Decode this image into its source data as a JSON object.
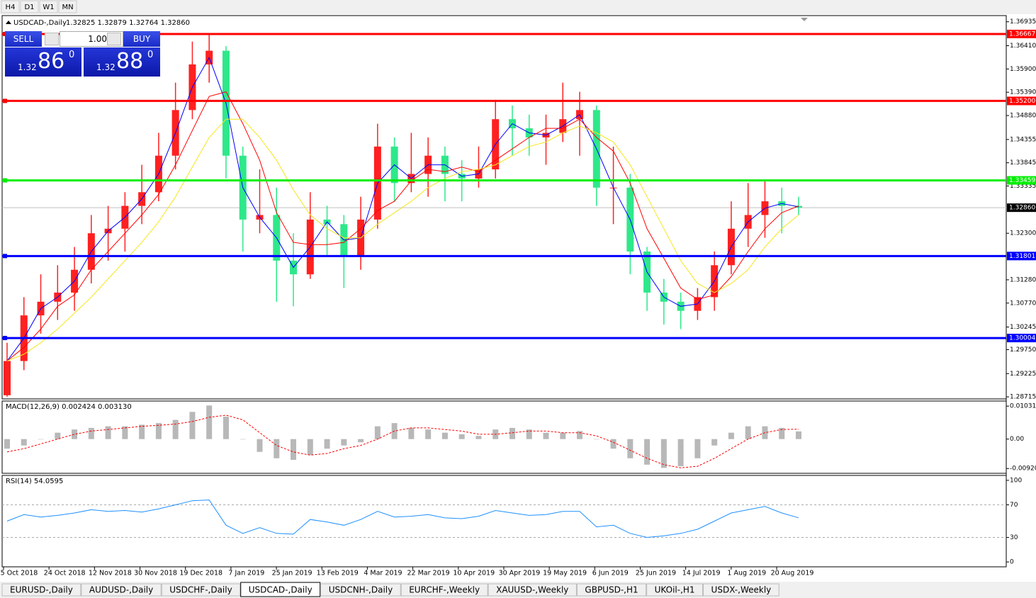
{
  "timeframes": [
    "H4",
    "D1",
    "W1",
    "MN"
  ],
  "trade_panel": {
    "sell": "SELL",
    "buy": "BUY",
    "lot": "1.00",
    "bid": {
      "big_figure": "1.32",
      "pips": "86",
      "point": "0"
    },
    "ask": {
      "big_figure": "1.32",
      "pips": "88",
      "point": "0"
    }
  },
  "symbol_tabs": [
    "EURUSD-,Daily",
    "AUDUSD-,Daily",
    "USDCHF-,Daily",
    "USDCAD-,Daily",
    "USDCNH-,Daily",
    "EURCHF-,Weekly",
    "XAUUSD-,Weekly",
    "GBPUSD-,H1",
    "UKOil-,H1",
    "USDX-,Weekly"
  ],
  "chart_data": [
    {
      "type": "candlestick",
      "title": "USDCAD-,Daily",
      "subtitle": "1.32825 1.32879 1.32764 1.32860",
      "x_labels": [
        "5 Oct 2018",
        "24 Oct 2018",
        "12 Nov 2018",
        "30 Nov 2018",
        "19 Dec 2018",
        "7 Jan 2019",
        "25 Jan 2019",
        "13 Feb 2019",
        "4 Mar 2019",
        "22 Mar 2019",
        "10 Apr 2019",
        "30 Apr 2019",
        "19 May 2019",
        "6 Jun 2019",
        "25 Jun 2019",
        "14 Jul 2019",
        "1 Aug 2019",
        "20 Aug 2019"
      ],
      "open": [
        1.2875,
        1.295,
        1.305,
        1.308,
        1.31,
        1.315,
        1.323,
        1.324,
        1.329,
        1.332,
        1.34,
        1.35,
        1.36,
        1.363,
        1.34,
        1.326,
        1.327,
        1.317,
        1.314,
        1.326,
        1.325,
        1.318,
        1.326,
        1.342,
        1.334,
        1.336,
        1.34,
        1.336,
        1.335,
        1.337,
        1.348,
        1.346,
        1.344,
        1.345,
        1.348,
        1.35,
        1.333,
        1.333,
        1.319,
        1.31,
        1.308,
        1.306,
        1.309,
        1.316,
        1.324,
        1.327,
        1.33,
        1.329
      ],
      "high": [
        1.299,
        1.309,
        1.314,
        1.316,
        1.32,
        1.327,
        1.329,
        1.332,
        1.338,
        1.345,
        1.356,
        1.365,
        1.3665,
        1.364,
        1.342,
        1.337,
        1.333,
        1.323,
        1.332,
        1.329,
        1.327,
        1.331,
        1.347,
        1.344,
        1.345,
        1.344,
        1.342,
        1.339,
        1.342,
        1.352,
        1.351,
        1.349,
        1.349,
        1.356,
        1.354,
        1.351,
        1.342,
        1.336,
        1.32,
        1.313,
        1.31,
        1.311,
        1.319,
        1.33,
        1.334,
        1.3345,
        1.333,
        1.331
      ],
      "low": [
        1.2872,
        1.293,
        1.301,
        1.304,
        1.306,
        1.312,
        1.317,
        1.319,
        1.325,
        1.33,
        1.337,
        1.348,
        1.356,
        1.335,
        1.319,
        1.323,
        1.308,
        1.307,
        1.313,
        1.318,
        1.311,
        1.315,
        1.324,
        1.33,
        1.332,
        1.331,
        1.33,
        1.33,
        1.333,
        1.335,
        1.34,
        1.34,
        1.338,
        1.343,
        1.34,
        1.329,
        1.325,
        1.314,
        1.306,
        1.303,
        1.302,
        1.304,
        1.306,
        1.314,
        1.32,
        1.322,
        1.323,
        1.327
      ],
      "close": [
        1.295,
        1.305,
        1.308,
        1.31,
        1.315,
        1.323,
        1.324,
        1.329,
        1.332,
        1.34,
        1.35,
        1.36,
        1.363,
        1.34,
        1.326,
        1.327,
        1.317,
        1.314,
        1.326,
        1.325,
        1.318,
        1.326,
        1.342,
        1.334,
        1.336,
        1.34,
        1.336,
        1.335,
        1.337,
        1.348,
        1.346,
        1.344,
        1.345,
        1.348,
        1.35,
        1.333,
        1.333,
        1.319,
        1.31,
        1.308,
        1.306,
        1.309,
        1.316,
        1.324,
        1.327,
        1.33,
        1.329,
        1.3286
      ],
      "up_color": "#ff2020",
      "down_color": "#2ee88a",
      "series": [
        {
          "color": "#0000ff",
          "values": [
            1.295,
            1.3,
            1.3065,
            1.309,
            1.3125,
            1.319,
            1.3235,
            1.3265,
            1.3305,
            1.336,
            1.345,
            1.355,
            1.3615,
            1.3515,
            1.333,
            1.3265,
            1.322,
            1.3155,
            1.32,
            1.3255,
            1.3215,
            1.322,
            1.334,
            1.338,
            1.335,
            1.338,
            1.338,
            1.3355,
            1.336,
            1.3425,
            1.347,
            1.345,
            1.3445,
            1.3465,
            1.349,
            1.3415,
            1.333,
            1.326,
            1.3145,
            1.309,
            1.307,
            1.3075,
            1.3125,
            1.32,
            1.3255,
            1.3285,
            1.3295,
            1.3288
          ]
        },
        {
          "color": "#ff0000",
          "values": [
            1.295,
            1.298,
            1.302,
            1.307,
            1.3095,
            1.315,
            1.319,
            1.323,
            1.327,
            1.3315,
            1.338,
            1.3455,
            1.353,
            1.354,
            1.347,
            1.339,
            1.3275,
            1.321,
            1.3205,
            1.3205,
            1.321,
            1.324,
            1.328,
            1.33,
            1.3345,
            1.337,
            1.3365,
            1.3375,
            1.3365,
            1.339,
            1.3415,
            1.344,
            1.346,
            1.346,
            1.348,
            1.344,
            1.341,
            1.334,
            1.324,
            1.3175,
            1.311,
            1.3085,
            1.3095,
            1.3135,
            1.319,
            1.324,
            1.3275,
            1.329
          ]
        },
        {
          "color": "#f5e61e",
          "values": [
            1.295,
            1.2965,
            1.299,
            1.302,
            1.3055,
            1.309,
            1.313,
            1.317,
            1.321,
            1.3255,
            1.331,
            1.3375,
            1.344,
            1.348,
            1.348,
            1.344,
            1.339,
            1.3325,
            1.327,
            1.324,
            1.322,
            1.322,
            1.325,
            1.3275,
            1.33,
            1.333,
            1.335,
            1.3365,
            1.337,
            1.338,
            1.34,
            1.342,
            1.343,
            1.345,
            1.3465,
            1.345,
            1.343,
            1.338,
            1.331,
            1.324,
            1.317,
            1.312,
            1.31,
            1.312,
            1.315,
            1.32,
            1.324,
            1.327
          ]
        }
      ],
      "levels": [
        {
          "value": 1.36667,
          "color": "#ff0000"
        },
        {
          "value": 1.352,
          "label": "1.35200",
          "color": "#ff0000"
        },
        {
          "value": 1.33459,
          "color": "#00ee00"
        },
        {
          "value": 1.31801,
          "color": "#0000ff"
        },
        {
          "value": 1.30004,
          "color": "#0000ff"
        }
      ],
      "last_price": {
        "value": 1.3286,
        "label": "1.32860"
      },
      "ylim": [
        1.2867,
        1.3707
      ],
      "yticks": [
        1.36935,
        {
          "value": 1.3641,
          "label": "1.36410"
        },
        {
          "value": 1.359,
          "label": "1.35900"
        },
        {
          "value": 1.3539,
          "label": "1.35390"
        },
        {
          "value": 1.3488,
          "label": "1.34880"
        },
        1.34355,
        1.33845,
        1.33335,
        {
          "value": 1.323,
          "label": "1.32300"
        },
        {
          "value": 1.3128,
          "label": "1.31280"
        },
        {
          "value": 1.3077,
          "label": "1.30770"
        },
        1.30245,
        {
          "value": 1.2975,
          "label": "1.29750"
        },
        1.29225,
        1.28715
      ]
    },
    {
      "type": "macd",
      "title": "MACD(12,26,9) 0.002424 0.003130",
      "color": "#b8b8b8",
      "signal_color": "#ff0000",
      "values": [
        -0.003,
        -0.002,
        0.0,
        0.002,
        0.003,
        0.0035,
        0.004,
        0.004,
        0.0045,
        0.005,
        0.006,
        0.0085,
        0.0105,
        0.007,
        0.0,
        -0.004,
        -0.006,
        -0.0065,
        -0.005,
        -0.003,
        -0.002,
        -0.001,
        0.004,
        0.005,
        0.0035,
        0.003,
        0.002,
        0.0015,
        0.001,
        0.003,
        0.0035,
        0.003,
        0.002,
        0.002,
        0.0025,
        0.0,
        -0.003,
        -0.006,
        -0.008,
        -0.009,
        -0.0085,
        -0.006,
        -0.002,
        0.002,
        0.004,
        0.004,
        0.0035,
        0.0024
      ],
      "signal": [
        -0.004,
        -0.003,
        -0.0015,
        0.0,
        0.0015,
        0.0025,
        0.003,
        0.0035,
        0.004,
        0.0043,
        0.0047,
        0.0055,
        0.0068,
        0.0075,
        0.006,
        0.002,
        -0.002,
        -0.004,
        -0.005,
        -0.0045,
        -0.003,
        -0.002,
        0.0,
        0.0025,
        0.0035,
        0.0035,
        0.003,
        0.0025,
        0.0015,
        0.0015,
        0.002,
        0.0025,
        0.0025,
        0.002,
        0.002,
        0.001,
        -0.001,
        -0.0035,
        -0.006,
        -0.008,
        -0.009,
        -0.0085,
        -0.006,
        -0.003,
        0.0,
        0.002,
        0.003,
        0.0031
      ],
      "ylim": [
        -0.0107,
        0.0119
      ],
      "yticks": [
        0.010311,
        {
          "value": 0,
          "label": "0.00"
        },
        -0.009203
      ]
    },
    {
      "type": "line",
      "title": "RSI(14) 54.0595",
      "color": "#1e90ff",
      "values": [
        50,
        58,
        55,
        57,
        60,
        64,
        62,
        63,
        61,
        65,
        70,
        75,
        76,
        45,
        35,
        42,
        35,
        34,
        52,
        49,
        45,
        52,
        62,
        55,
        56,
        58,
        54,
        53,
        56,
        63,
        60,
        57,
        58,
        62,
        62,
        43,
        45,
        35,
        30,
        32,
        35,
        40,
        50,
        60,
        64,
        68,
        60,
        54.0595
      ],
      "ylim": [
        -6,
        106
      ],
      "yticks": [
        100,
        70,
        30,
        0
      ]
    }
  ]
}
